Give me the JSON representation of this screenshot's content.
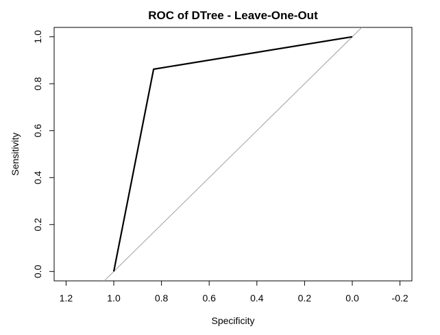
{
  "chart_data": {
    "type": "line",
    "title": "ROC of DTree - Leave-One-Out",
    "xlabel": "Specificity",
    "ylabel": "Sensitivity",
    "xlim": [
      1.25,
      -0.25
    ],
    "ylim": [
      -0.04,
      1.04
    ],
    "x_reversed": true,
    "grid": false,
    "xticks": [
      1.2,
      1.0,
      0.8,
      0.6,
      0.4,
      0.2,
      0.0,
      -0.2
    ],
    "xtick_labels": [
      "1.2",
      "1.0",
      "0.8",
      "0.6",
      "0.4",
      "0.2",
      "0.0",
      "-0.2"
    ],
    "yticks": [
      0.0,
      0.2,
      0.4,
      0.6,
      0.8,
      1.0
    ],
    "ytick_labels": [
      "0.0",
      "0.2",
      "0.4",
      "0.6",
      "0.8",
      "1.0"
    ],
    "series": [
      {
        "color": "#000000",
        "points": [
          {
            "x": 1.0,
            "y": 0.0
          },
          {
            "x": 0.833,
            "y": 0.862
          },
          {
            "x": 0.0,
            "y": 1.0
          }
        ]
      }
    ],
    "reference_line": {
      "color": "#a0a0a0",
      "from": {
        "x": 1.0,
        "y": 0.0
      },
      "to": {
        "x": 0.0,
        "y": 1.0
      }
    }
  }
}
